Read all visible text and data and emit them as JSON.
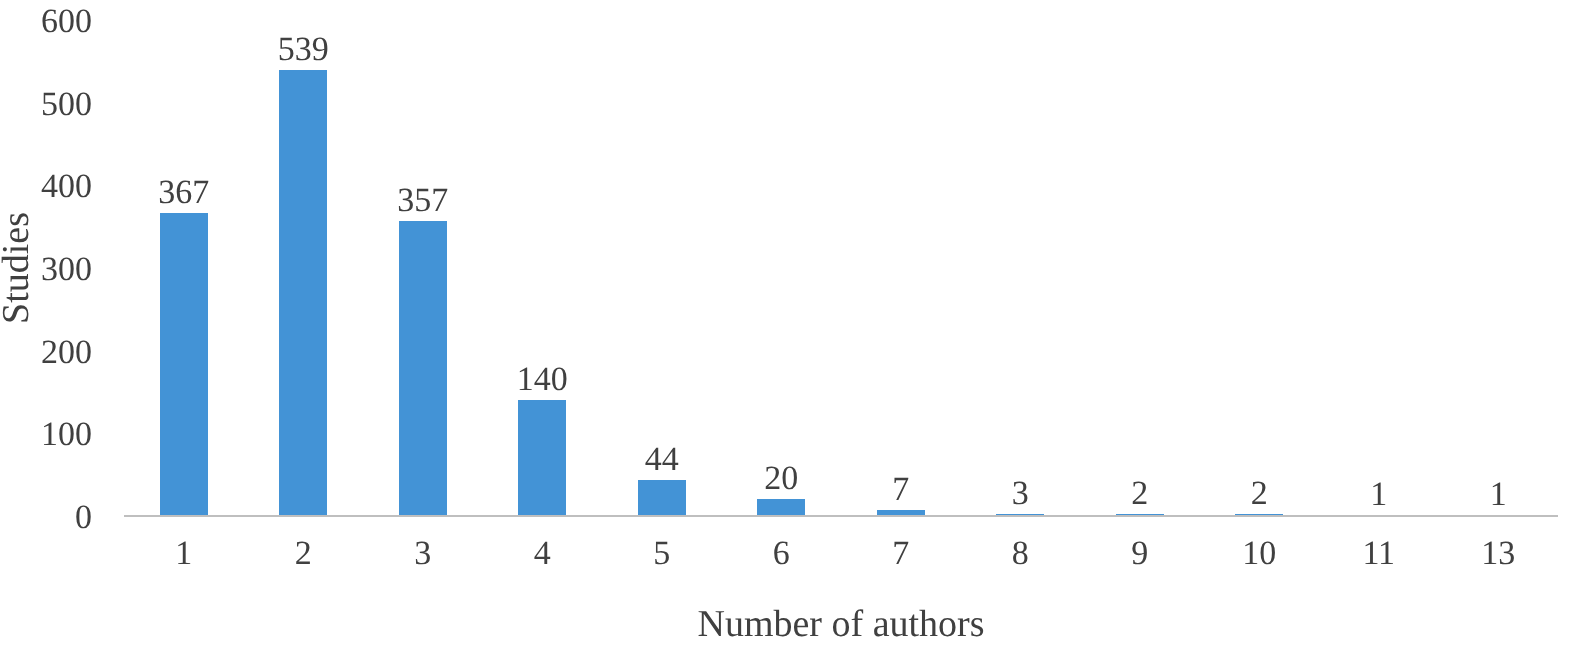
{
  "chart_data": {
    "type": "bar",
    "xlabel": "Number of authors",
    "ylabel": "Studies",
    "categories": [
      "1",
      "2",
      "3",
      "4",
      "5",
      "6",
      "7",
      "8",
      "9",
      "10",
      "11",
      "13"
    ],
    "values": [
      367,
      539,
      357,
      140,
      44,
      20,
      7,
      3,
      2,
      2,
      1,
      1
    ],
    "color": "#4393d6",
    "ylim": [
      0,
      600
    ],
    "yticks": [
      0,
      100,
      200,
      300,
      400,
      500,
      600
    ],
    "data_labels": true,
    "grid": false
  }
}
